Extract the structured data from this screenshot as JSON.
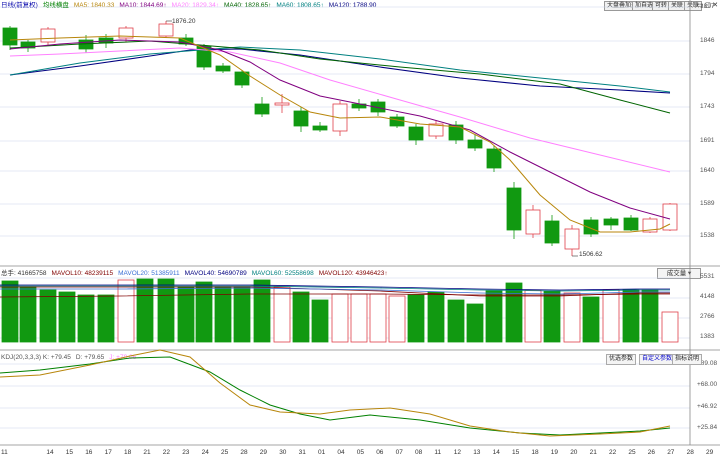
{
  "toolbar": {
    "buttons": [
      "大盘叠加对",
      "加自选",
      "可转",
      "关联",
      "关联"
    ],
    "icons": [
      "minimize-icon",
      "restore-icon",
      "close-icon"
    ]
  },
  "main_legend": {
    "prefix": "日线(前复权)",
    "type": "均线横盘",
    "ma": [
      {
        "label": "MA5: 1840.33",
        "color": "#b8860b"
      },
      {
        "label": "MA10: 1844.69↑",
        "color": "#800080"
      },
      {
        "label": "MA20: 1829.34↑",
        "color": "#ff80ff"
      },
      {
        "label": "MA40: 1828.65↑",
        "color": "#006400"
      },
      {
        "label": "MA60: 1808.65↑",
        "color": "#008080"
      },
      {
        "label": "MA120: 1788.90",
        "color": "#000080"
      }
    ]
  },
  "price_axis": [
    "1897",
    "1846",
    "1794",
    "1743",
    "1691",
    "1640",
    "1589",
    "1538"
  ],
  "annotations": {
    "high": "1876.20",
    "low": "1506.62"
  },
  "vol_legend": {
    "items": [
      {
        "label": "总手: 41665758",
        "color": "#333333"
      },
      {
        "label": "MAVOL10: 48239115",
        "color": "#800000"
      },
      {
        "label": "MAVOL20: 51385911",
        "color": "#3b6fd4"
      },
      {
        "label": "MAVOL40: 54690789",
        "color": "#000080"
      },
      {
        "label": "MAVOL60: 52558698",
        "color": "#008080"
      },
      {
        "label": "MAVOL120: 43946423↑",
        "color": "#800000"
      }
    ],
    "dropdown": "成交量"
  },
  "vol_axis": [
    "5531",
    "4148",
    "2766",
    "1383"
  ],
  "kdj_legend": {
    "items": [
      {
        "label": "KDJ(20,3,3,3) K: +79.45",
        "color": "#555555"
      },
      {
        "label": "D: +79.65",
        "color": "#555555"
      },
      {
        "label": "J: +79.06",
        "color": "#ff80ff"
      }
    ]
  },
  "kdj_axis": [
    "+89.08",
    "+68.00",
    "+46.92",
    "+25.84"
  ],
  "panel_buttons": [
    "优选参数",
    "自定义参数",
    "指标说明"
  ],
  "x_axis": [
    "11",
    "14",
    "15",
    "16",
    "17",
    "18",
    "21",
    "22",
    "23",
    "24",
    "25",
    "28",
    "29",
    "30",
    "31",
    "01",
    "04",
    "05",
    "06",
    "07",
    "08",
    "11",
    "12",
    "13",
    "14",
    "15",
    "18",
    "19",
    "20",
    "21",
    "22",
    "25",
    "26",
    "27",
    "28",
    "29"
  ],
  "colors": {
    "up": "#e0404a",
    "down": "#119911",
    "grid": "#c9d6ea"
  }
}
